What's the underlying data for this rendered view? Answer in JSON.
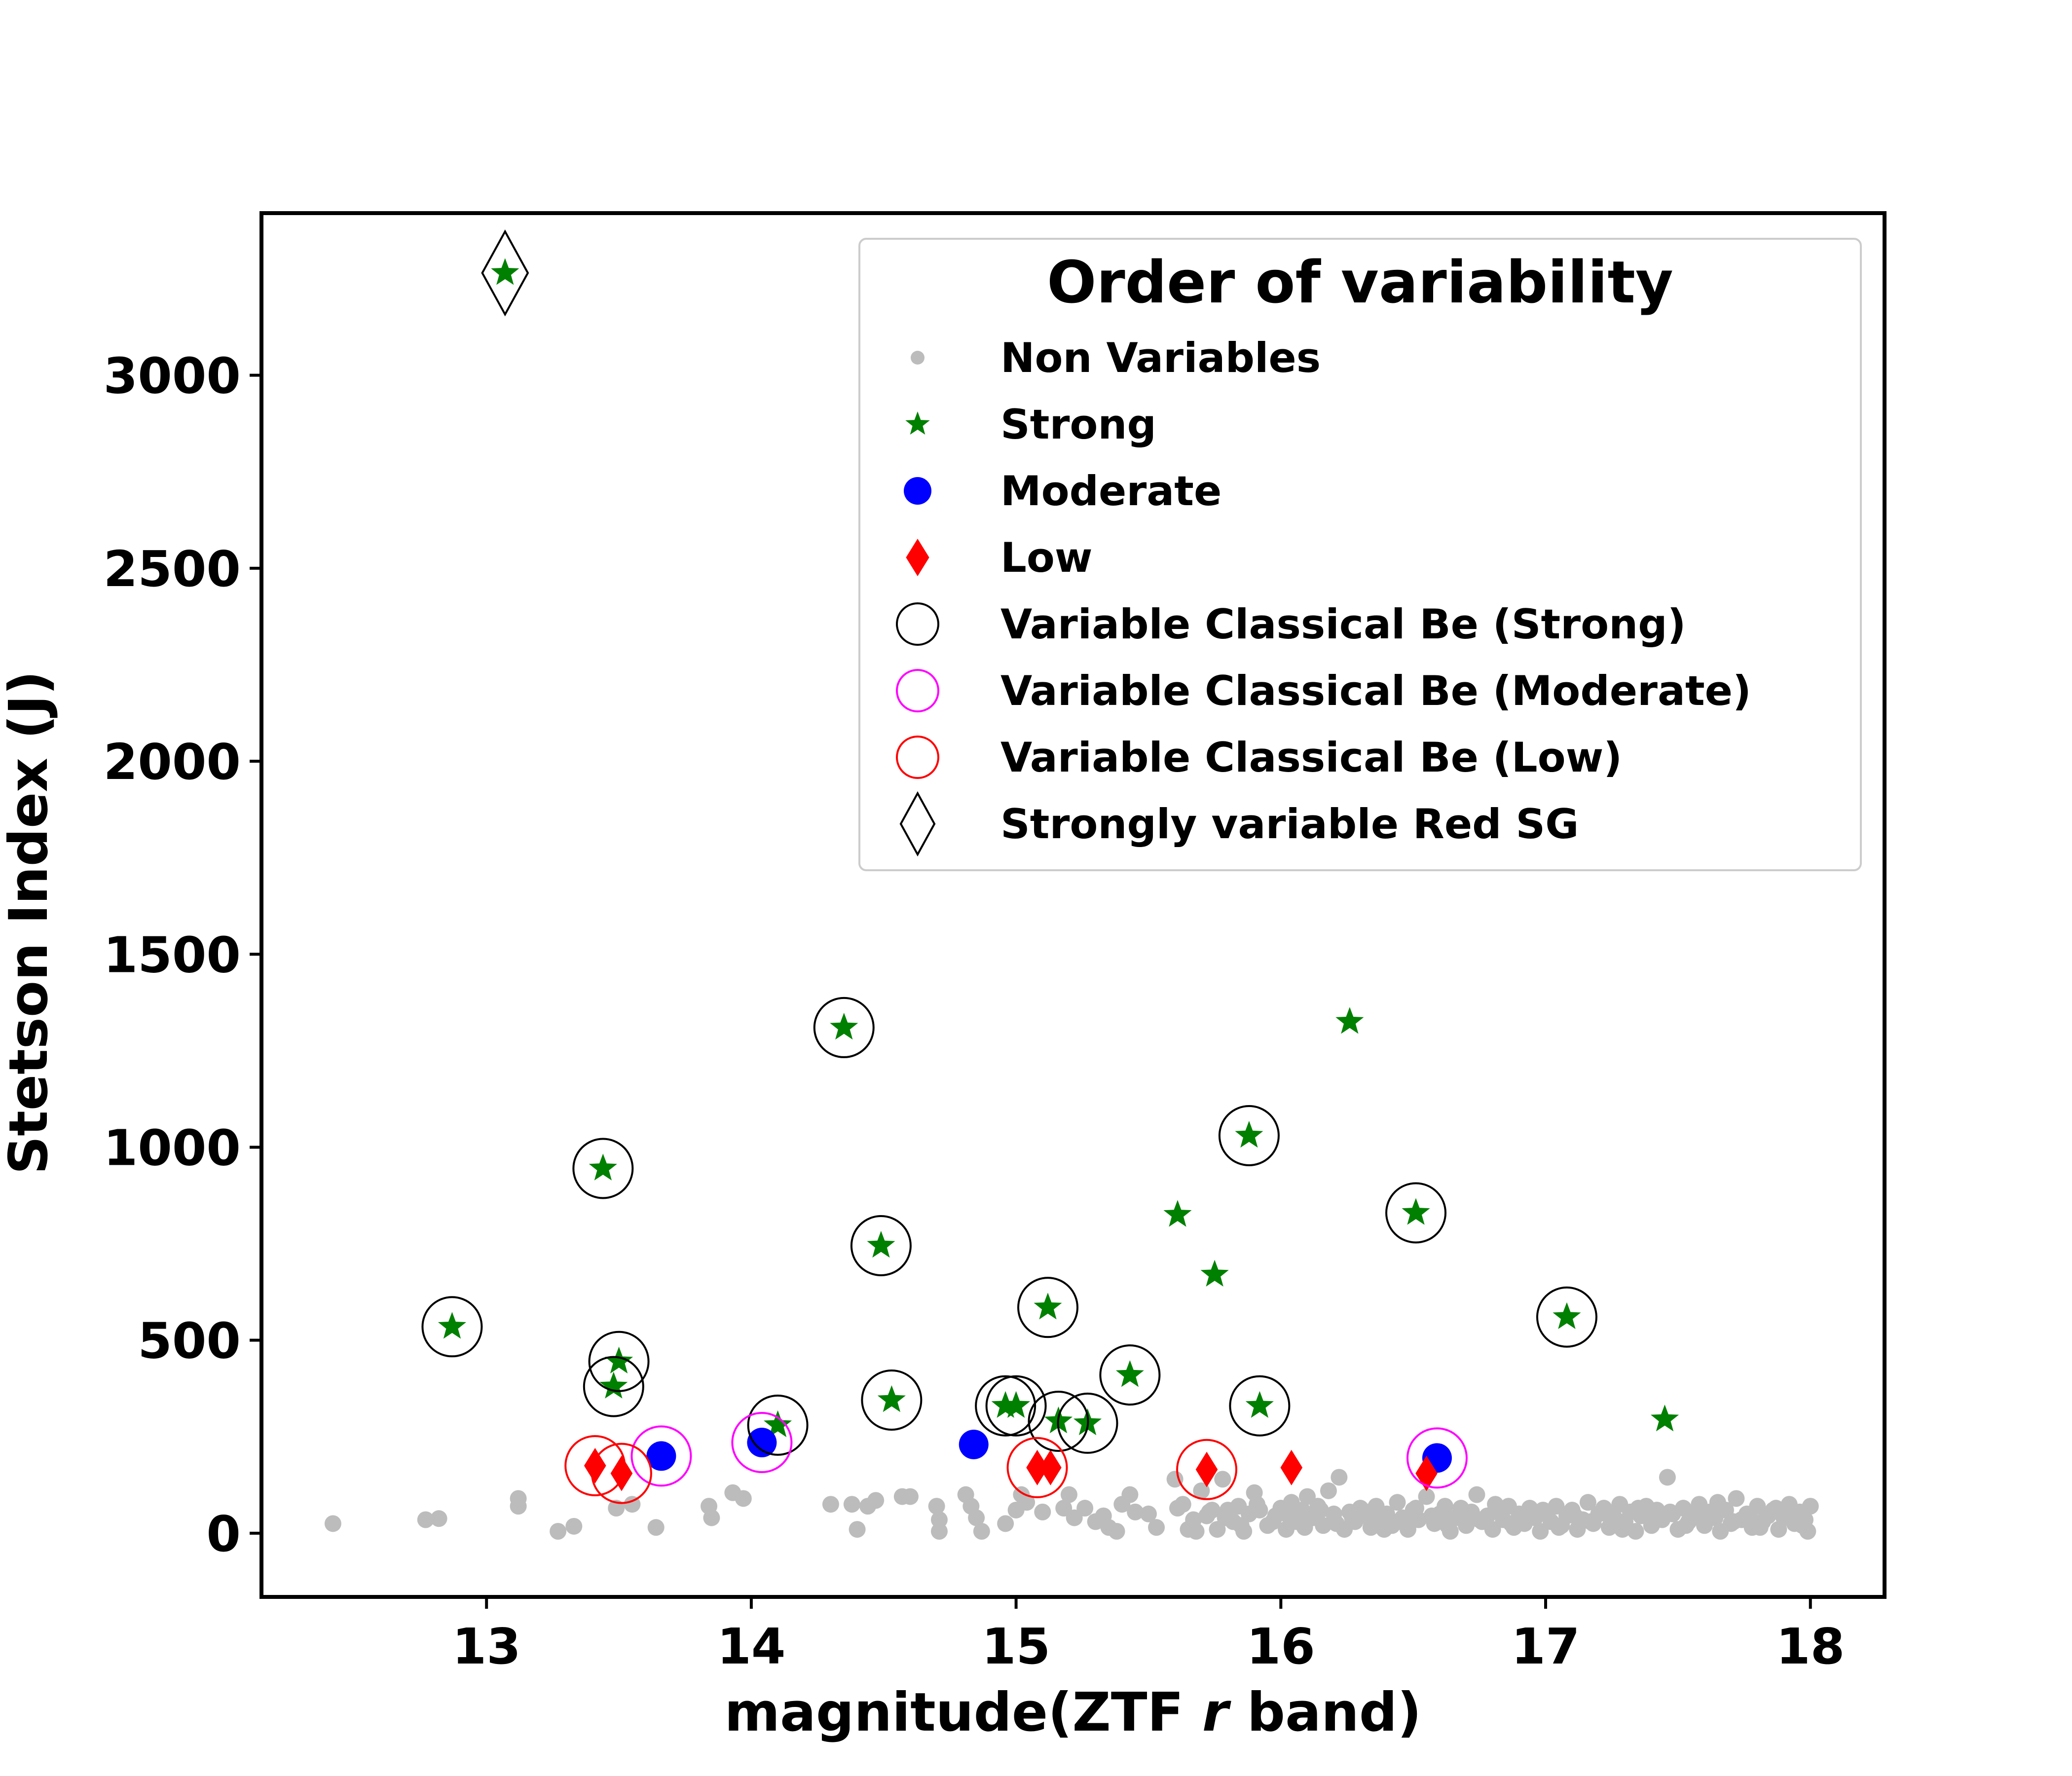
{
  "chart_data": {
    "type": "scatter",
    "title": "",
    "xlabel": {
      "before": "magnitude(ZTF ",
      "italic": "r",
      "after": " band)"
    },
    "ylabel": "Stetson Index (J)",
    "xlim": [
      12.15,
      18.28
    ],
    "ylim": [
      -165,
      3420
    ],
    "xticks": [
      13,
      14,
      15,
      16,
      17,
      18
    ],
    "yticks": [
      0,
      500,
      1000,
      1500,
      2000,
      2500,
      3000
    ],
    "grid": false,
    "legend": {
      "title": "Order of variability",
      "position": "top-right",
      "entries": [
        {
          "label": "Non Variables",
          "marker": "circle",
          "color": "#a0a0a0"
        },
        {
          "label": "Strong",
          "marker": "star",
          "color": "#008000"
        },
        {
          "label": "Moderate",
          "marker": "circle",
          "color": "#0000ff"
        },
        {
          "label": "Low",
          "marker": "diamond",
          "color": "#ff0000"
        },
        {
          "label": "Variable Classical Be (Strong)",
          "marker": "open-circle",
          "color": "#000000"
        },
        {
          "label": "Variable Classical Be (Moderate)",
          "marker": "open-circle",
          "color": "#ff00ff"
        },
        {
          "label": "Variable Classical Be (Low)",
          "marker": "open-circle",
          "color": "#ff0000"
        },
        {
          "label": "Strongly variable Red SG",
          "marker": "open-diamond",
          "color": "#000000"
        }
      ]
    },
    "series": [
      {
        "name": "Non Variables",
        "marker": "circle",
        "color": "#a0a0a0",
        "points": [
          [
            12.42,
            25
          ],
          [
            12.77,
            35
          ],
          [
            12.82,
            38
          ],
          [
            13.12,
            90
          ],
          [
            13.12,
            70
          ],
          [
            13.27,
            5
          ],
          [
            13.33,
            18
          ],
          [
            13.49,
            65
          ],
          [
            13.55,
            75
          ],
          [
            13.64,
            15
          ],
          [
            13.84,
            70
          ],
          [
            13.85,
            40
          ],
          [
            13.93,
            105
          ],
          [
            13.97,
            90
          ],
          [
            14.3,
            75
          ],
          [
            14.38,
            75
          ],
          [
            14.4,
            10
          ],
          [
            14.44,
            70
          ],
          [
            14.47,
            85
          ],
          [
            14.57,
            95
          ],
          [
            14.6,
            95
          ],
          [
            14.7,
            70
          ],
          [
            14.71,
            35
          ],
          [
            14.71,
            5
          ],
          [
            14.81,
            100
          ],
          [
            14.83,
            70
          ],
          [
            14.85,
            40
          ],
          [
            14.87,
            5
          ],
          [
            14.96,
            25
          ],
          [
            15.0,
            60
          ],
          [
            15.02,
            100
          ],
          [
            15.04,
            80
          ],
          [
            15.1,
            55
          ],
          [
            15.18,
            65
          ],
          [
            15.2,
            100
          ],
          [
            15.22,
            40
          ],
          [
            15.26,
            65
          ],
          [
            15.3,
            30
          ],
          [
            15.33,
            45
          ],
          [
            15.35,
            15
          ],
          [
            15.38,
            5
          ],
          [
            15.4,
            75
          ],
          [
            15.43,
            100
          ],
          [
            15.45,
            55
          ],
          [
            15.5,
            50
          ],
          [
            15.53,
            15
          ],
          [
            15.6,
            140
          ],
          [
            15.63,
            75
          ],
          [
            15.65,
            10
          ],
          [
            15.68,
            5
          ],
          [
            15.7,
            110
          ],
          [
            15.72,
            45
          ],
          [
            15.74,
            60
          ],
          [
            15.76,
            10
          ],
          [
            15.78,
            140
          ],
          [
            15.8,
            60
          ],
          [
            15.82,
            30
          ],
          [
            15.84,
            70
          ],
          [
            15.86,
            5
          ],
          [
            15.88,
            50
          ],
          [
            15.9,
            105
          ],
          [
            15.92,
            60
          ],
          [
            15.95,
            20
          ],
          [
            15.98,
            45
          ],
          [
            16.0,
            65
          ],
          [
            16.02,
            10
          ],
          [
            16.04,
            80
          ],
          [
            16.06,
            30
          ],
          [
            16.08,
            60
          ],
          [
            16.1,
            95
          ],
          [
            16.12,
            40
          ],
          [
            16.14,
            70
          ],
          [
            16.16,
            20
          ],
          [
            16.18,
            110
          ],
          [
            16.2,
            50
          ],
          [
            16.22,
            145
          ],
          [
            16.24,
            10
          ],
          [
            16.26,
            55
          ],
          [
            16.28,
            30
          ],
          [
            16.3,
            65
          ],
          [
            16.32,
            45
          ],
          [
            16.34,
            15
          ],
          [
            16.36,
            70
          ],
          [
            16.38,
            35
          ],
          [
            16.4,
            50
          ],
          [
            16.42,
            20
          ],
          [
            16.44,
            80
          ],
          [
            16.46,
            40
          ],
          [
            16.48,
            10
          ],
          [
            16.5,
            60
          ],
          [
            16.52,
            35
          ],
          [
            16.55,
            95
          ],
          [
            16.58,
            25
          ],
          [
            16.6,
            50
          ],
          [
            16.62,
            70
          ],
          [
            16.64,
            5
          ],
          [
            16.66,
            40
          ],
          [
            16.68,
            65
          ],
          [
            16.7,
            20
          ],
          [
            16.72,
            55
          ],
          [
            16.74,
            100
          ],
          [
            16.76,
            30
          ],
          [
            16.78,
            45
          ],
          [
            16.8,
            10
          ],
          [
            16.82,
            60
          ],
          [
            16.84,
            35
          ],
          [
            16.86,
            70
          ],
          [
            16.88,
            15
          ],
          [
            16.9,
            50
          ],
          [
            16.92,
            25
          ],
          [
            16.94,
            65
          ],
          [
            16.96,
            40
          ],
          [
            16.98,
            5
          ],
          [
            17.0,
            55
          ],
          [
            17.02,
            30
          ],
          [
            17.04,
            70
          ],
          [
            17.06,
            20
          ],
          [
            17.08,
            45
          ],
          [
            17.1,
            60
          ],
          [
            17.12,
            10
          ],
          [
            17.14,
            35
          ],
          [
            17.16,
            80
          ],
          [
            17.18,
            25
          ],
          [
            17.2,
            50
          ],
          [
            17.22,
            65
          ],
          [
            17.24,
            15
          ],
          [
            17.26,
            40
          ],
          [
            17.28,
            75
          ],
          [
            17.3,
            30
          ],
          [
            17.32,
            55
          ],
          [
            17.34,
            5
          ],
          [
            17.36,
            45
          ],
          [
            17.38,
            70
          ],
          [
            17.4,
            20
          ],
          [
            17.42,
            60
          ],
          [
            17.44,
            35
          ],
          [
            17.46,
            145
          ],
          [
            17.48,
            50
          ],
          [
            17.5,
            10
          ],
          [
            17.52,
            65
          ],
          [
            17.54,
            30
          ],
          [
            17.56,
            45
          ],
          [
            17.58,
            75
          ],
          [
            17.6,
            20
          ],
          [
            17.62,
            55
          ],
          [
            17.64,
            40
          ],
          [
            17.66,
            5
          ],
          [
            17.68,
            60
          ],
          [
            17.7,
            25
          ],
          [
            17.72,
            90
          ],
          [
            17.74,
            35
          ],
          [
            17.76,
            50
          ],
          [
            17.78,
            15
          ],
          [
            17.8,
            70
          ],
          [
            17.82,
            30
          ],
          [
            17.84,
            45
          ],
          [
            17.86,
            60
          ],
          [
            17.88,
            10
          ],
          [
            17.9,
            40
          ],
          [
            17.92,
            75
          ],
          [
            17.94,
            25
          ],
          [
            17.96,
            55
          ],
          [
            17.98,
            35
          ],
          [
            17.99,
            5
          ],
          [
            18.0,
            70
          ],
          [
            17.97,
            20
          ],
          [
            17.93,
            50
          ],
          [
            17.87,
            65
          ],
          [
            17.81,
            15
          ],
          [
            17.77,
            45
          ],
          [
            17.71,
            30
          ],
          [
            17.65,
            80
          ],
          [
            17.59,
            40
          ],
          [
            17.53,
            20
          ],
          [
            17.47,
            55
          ],
          [
            17.41,
            35
          ],
          [
            17.35,
            65
          ],
          [
            17.29,
            10
          ],
          [
            17.23,
            50
          ],
          [
            17.17,
            30
          ],
          [
            17.11,
            45
          ],
          [
            17.05,
            15
          ],
          [
            16.99,
            60
          ],
          [
            16.93,
            40
          ],
          [
            16.87,
            25
          ],
          [
            16.81,
            75
          ],
          [
            16.75,
            35
          ],
          [
            16.69,
            50
          ],
          [
            16.63,
            20
          ],
          [
            16.57,
            45
          ],
          [
            16.51,
            65
          ],
          [
            16.45,
            30
          ],
          [
            16.39,
            10
          ],
          [
            16.33,
            55
          ],
          [
            16.27,
            40
          ],
          [
            16.21,
            25
          ],
          [
            16.15,
            60
          ],
          [
            16.09,
            15
          ],
          [
            16.03,
            45
          ],
          [
            15.97,
            30
          ],
          [
            15.91,
            75
          ],
          [
            15.85,
            20
          ],
          [
            15.79,
            40
          ],
          [
            15.73,
            55
          ],
          [
            15.67,
            35
          ],
          [
            15.61,
            65
          ]
        ]
      },
      {
        "name": "Strong",
        "marker": "star",
        "color": "#008000",
        "points": [
          [
            13.07,
            3265
          ],
          [
            12.87,
            535
          ],
          [
            13.44,
            945
          ],
          [
            13.5,
            445
          ],
          [
            13.48,
            380
          ],
          [
            14.1,
            280
          ],
          [
            14.35,
            1310
          ],
          [
            14.49,
            745
          ],
          [
            14.53,
            345
          ],
          [
            14.96,
            330
          ],
          [
            15.0,
            330
          ],
          [
            15.12,
            585
          ],
          [
            15.16,
            290
          ],
          [
            15.27,
            285
          ],
          [
            15.43,
            410
          ],
          [
            15.61,
            825
          ],
          [
            15.75,
            670
          ],
          [
            15.88,
            1030
          ],
          [
            15.92,
            330
          ],
          [
            16.26,
            1325
          ],
          [
            16.51,
            830
          ],
          [
            17.08,
            560
          ],
          [
            17.45,
            295
          ]
        ]
      },
      {
        "name": "Moderate",
        "marker": "circle",
        "color": "#0000ff",
        "points": [
          [
            13.66,
            200
          ],
          [
            14.04,
            235
          ],
          [
            14.84,
            230
          ],
          [
            16.59,
            195
          ]
        ]
      },
      {
        "name": "Low",
        "marker": "diamond",
        "color": "#ff0000",
        "points": [
          [
            13.41,
            175
          ],
          [
            13.51,
            155
          ],
          [
            15.08,
            170
          ],
          [
            15.13,
            170
          ],
          [
            15.72,
            165
          ],
          [
            16.04,
            170
          ],
          [
            16.55,
            155
          ]
        ]
      },
      {
        "name": "Variable Classical Be (Strong)",
        "marker": "open-circle",
        "color": "#000000",
        "points": [
          [
            12.87,
            535
          ],
          [
            13.44,
            945
          ],
          [
            13.5,
            445
          ],
          [
            13.48,
            380
          ],
          [
            14.1,
            280
          ],
          [
            14.35,
            1310
          ],
          [
            14.49,
            745
          ],
          [
            14.53,
            345
          ],
          [
            14.96,
            330
          ],
          [
            15.0,
            330
          ],
          [
            15.12,
            585
          ],
          [
            15.16,
            290
          ],
          [
            15.27,
            285
          ],
          [
            15.43,
            410
          ],
          [
            15.88,
            1030
          ],
          [
            15.92,
            330
          ],
          [
            16.51,
            830
          ],
          [
            17.08,
            560
          ]
        ]
      },
      {
        "name": "Variable Classical Be (Moderate)",
        "marker": "open-circle",
        "color": "#ff00ff",
        "points": [
          [
            13.66,
            200
          ],
          [
            14.04,
            235
          ],
          [
            16.59,
            195
          ]
        ]
      },
      {
        "name": "Variable Classical Be (Low)",
        "marker": "open-circle",
        "color": "#ff0000",
        "points": [
          [
            13.41,
            175
          ],
          [
            13.51,
            155
          ],
          [
            15.08,
            170
          ],
          [
            15.72,
            165
          ]
        ]
      },
      {
        "name": "Strongly variable Red SG",
        "marker": "open-diamond",
        "color": "#000000",
        "points": [
          [
            13.07,
            3265
          ]
        ]
      }
    ]
  }
}
